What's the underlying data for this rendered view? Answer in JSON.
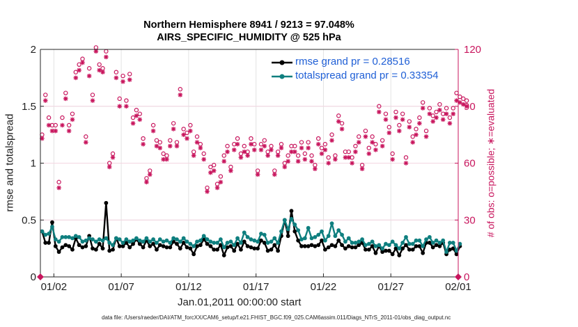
{
  "title_line1": "Northern Hemisphere 8941 / 9213 = 97.048%",
  "title_line2": "AIRS_SPECIFIC_HUMIDITY @ 525 hPa",
  "xlabel": "Jan.01,2011 00:00:00 start",
  "ylabel_left": "rmse and totalspread",
  "ylabel_right": "# of obs: o=possible; ∗=evaluated",
  "footnote": "data file: /Users/raeder/DAI/ATM_forcXX/CAM6_setup/f.e21.FHIST_BGC.f09_025.CAM6assim.011/Diags_NTrS_2011-01/obs_diag_output.nc",
  "colors": {
    "rmse": "#000000",
    "spread": "#0f7f7f",
    "obs": "#c8155d",
    "legend_text": "#1f5fd6"
  },
  "legend": {
    "rmse": "rmse grand pr = 0.28516",
    "spread": "totalspread grand pr = 0.33354"
  },
  "chart_data": {
    "type": "line",
    "xlim": [
      0,
      31
    ],
    "ylim_left": [
      0,
      2
    ],
    "ylim_right": [
      0,
      120
    ],
    "x_ticks": [
      1,
      6,
      11,
      16,
      21,
      26,
      31
    ],
    "x_tick_labels": [
      "01/02",
      "01/07",
      "01/12",
      "01/17",
      "01/22",
      "01/27",
      "02/01"
    ],
    "y_left_ticks": [
      0,
      0.5,
      1,
      1.5,
      2
    ],
    "y_left_tick_labels": [
      "0",
      "0.5",
      "1",
      "1.5",
      "2"
    ],
    "y_right_ticks": [
      0,
      30,
      60,
      90,
      120
    ],
    "y_right_tick_labels": [
      "0",
      "30",
      "60",
      "90",
      "120"
    ],
    "series": [
      {
        "name": "rmse",
        "axis": "left",
        "x_start": 0.125,
        "x_step": 0.25,
        "values": [
          0.4,
          0.3,
          0.3,
          0.48,
          0.27,
          0.22,
          0.26,
          0.28,
          0.27,
          0.24,
          0.34,
          0.28,
          0.26,
          0.27,
          0.36,
          0.25,
          0.24,
          0.29,
          0.25,
          0.65,
          0.23,
          0.24,
          0.34,
          0.27,
          0.27,
          0.3,
          0.26,
          0.29,
          0.33,
          0.29,
          0.26,
          0.32,
          0.27,
          0.29,
          0.24,
          0.28,
          0.27,
          0.26,
          0.26,
          0.31,
          0.29,
          0.25,
          0.3,
          0.26,
          0.25,
          0.2,
          0.27,
          0.28,
          0.33,
          0.29,
          0.27,
          0.24,
          0.24,
          0.28,
          0.19,
          0.26,
          0.27,
          0.23,
          0.29,
          0.24,
          0.31,
          0.27,
          0.26,
          0.25,
          0.25,
          0.32,
          0.3,
          0.23,
          0.24,
          0.28,
          0.23,
          0.36,
          0.5,
          0.36,
          0.58,
          0.4,
          0.32,
          0.27,
          0.27,
          0.27,
          0.28,
          0.27,
          0.28,
          0.32,
          0.24,
          0.26,
          0.28,
          0.27,
          0.32,
          0.28,
          0.25,
          0.27,
          0.26,
          0.26,
          0.28,
          0.3,
          0.24,
          0.24,
          0.27,
          0.21,
          0.27,
          0.22,
          0.23,
          0.23,
          0.2,
          0.25,
          0.19,
          0.25,
          0.28,
          0.24,
          0.24,
          0.27,
          0.27,
          0.21,
          0.3,
          0.3,
          0.26,
          0.28,
          0.27,
          0.3,
          0.2,
          0.24,
          0.25,
          0.2,
          0.27
        ]
      },
      {
        "name": "totalspread",
        "axis": "left",
        "x_start": 0.125,
        "x_step": 0.25,
        "values": [
          0.4,
          0.37,
          0.38,
          0.44,
          0.33,
          0.31,
          0.35,
          0.35,
          0.35,
          0.34,
          0.36,
          0.35,
          0.31,
          0.32,
          0.34,
          0.33,
          0.31,
          0.33,
          0.32,
          0.34,
          0.3,
          0.28,
          0.34,
          0.33,
          0.3,
          0.33,
          0.31,
          0.32,
          0.34,
          0.32,
          0.31,
          0.34,
          0.31,
          0.33,
          0.3,
          0.33,
          0.31,
          0.32,
          0.3,
          0.34,
          0.33,
          0.31,
          0.34,
          0.31,
          0.29,
          0.27,
          0.31,
          0.32,
          0.36,
          0.33,
          0.31,
          0.3,
          0.3,
          0.33,
          0.26,
          0.3,
          0.31,
          0.28,
          0.34,
          0.3,
          0.39,
          0.35,
          0.33,
          0.32,
          0.31,
          0.38,
          0.37,
          0.3,
          0.31,
          0.34,
          0.3,
          0.4,
          0.5,
          0.42,
          0.51,
          0.46,
          0.41,
          0.33,
          0.34,
          0.43,
          0.34,
          0.35,
          0.37,
          0.4,
          0.32,
          0.36,
          0.47,
          0.36,
          0.41,
          0.37,
          0.31,
          0.34,
          0.3,
          0.3,
          0.31,
          0.33,
          0.28,
          0.29,
          0.31,
          0.27,
          0.28,
          0.25,
          0.29,
          0.28,
          0.31,
          0.28,
          0.25,
          0.3,
          0.35,
          0.29,
          0.29,
          0.32,
          0.32,
          0.27,
          0.33,
          0.35,
          0.3,
          0.32,
          0.3,
          0.32,
          0.22,
          0.3,
          0.3,
          0.23,
          0.29
        ]
      },
      {
        "name": "obs_possible",
        "axis": "right",
        "marker": "o",
        "x_start": 0.125,
        "x_step": 0.25,
        "values": [
          75,
          96,
          84,
          80,
          80,
          50,
          84,
          97,
          80,
          86,
          108,
          112,
          115,
          74,
          110,
          96,
          121,
          112,
          110,
          119,
          60,
          65,
          108,
          94,
          106,
          93,
          107,
          84,
          88,
          86,
          73,
          52,
          56,
          80,
          72,
          71,
          65,
          64,
          72,
          81,
          71,
          99,
          78,
          76,
          80,
          66,
          74,
          70,
          65,
          47,
          58,
          59,
          49,
          53,
          64,
          69,
          58,
          70,
          73,
          65,
          69,
          66,
          73,
          70,
          56,
          70,
          72,
          66,
          69,
          56,
          66,
          70,
          60,
          64,
          69,
          69,
          64,
          71,
          65,
          71,
          64,
          59,
          73,
          68,
          70,
          63,
          75,
          64,
          85,
          81,
          66,
          66,
          63,
          69,
          74,
          59,
          77,
          68,
          74,
          70,
          90,
          72,
          86,
          79,
          65,
          87,
          80,
          86,
          63,
          82,
          74,
          78,
          84,
          92,
          77,
          89,
          85,
          87,
          91,
          86,
          89,
          84,
          89,
          97,
          95,
          94,
          93
        ]
      },
      {
        "name": "obs_evaluated",
        "axis": "right",
        "marker": "*",
        "x_start": 0.125,
        "x_step": 0.25,
        "values": [
          73,
          93,
          80,
          77,
          77,
          47,
          80,
          94,
          77,
          83,
          105,
          109,
          113,
          71,
          106,
          93,
          119,
          109,
          108,
          116,
          58,
          63,
          105,
          90,
          103,
          90,
          104,
          81,
          85,
          83,
          70,
          50,
          54,
          77,
          69,
          68,
          62,
          62,
          69,
          78,
          69,
          96,
          75,
          73,
          77,
          64,
          71,
          68,
          62,
          45,
          55,
          56,
          47,
          50,
          61,
          66,
          56,
          67,
          70,
          63,
          66,
          64,
          70,
          67,
          54,
          67,
          69,
          64,
          67,
          54,
          64,
          68,
          58,
          61,
          66,
          66,
          61,
          68,
          62,
          68,
          61,
          57,
          70,
          65,
          67,
          60,
          72,
          62,
          82,
          78,
          63,
          63,
          60,
          66,
          71,
          57,
          74,
          65,
          71,
          67,
          87,
          69,
          83,
          76,
          62,
          84,
          77,
          83,
          60,
          79,
          71,
          75,
          81,
          89,
          74,
          86,
          82,
          84,
          88,
          83,
          86,
          81,
          86,
          93,
          92,
          91,
          90
        ]
      }
    ]
  }
}
